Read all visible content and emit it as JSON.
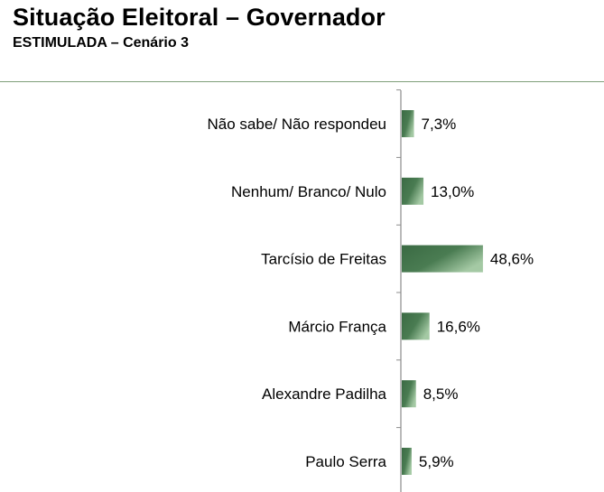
{
  "header": {
    "title": "Situação Eleitoral – Governador",
    "subtitle": "ESTIMULADA – Cenário 3"
  },
  "colors": {
    "bar_dark": "#3a6a43",
    "bar_light": "#a4c9a4",
    "axis": "#8c8c8c",
    "divider": "#7f9f7a"
  },
  "chart_data": {
    "type": "bar",
    "orientation": "horizontal",
    "title": "Situação Eleitoral – Governador",
    "subtitle": "ESTIMULADA – Cenário 3",
    "categories": [
      "Não sabe/ Não respondeu",
      "Nenhum/ Branco/ Nulo",
      "Tarcísio de Freitas",
      "Márcio França",
      "Alexandre Padilha",
      "Paulo Serra"
    ],
    "values": [
      7.3,
      13.0,
      48.6,
      16.6,
      8.5,
      5.9
    ],
    "value_labels": [
      "7,3%",
      "13,0%",
      "48,6%",
      "16,6%",
      "8,5%",
      "5,9%"
    ],
    "unit": "%",
    "xlim": [
      0,
      100
    ],
    "grid": false,
    "legend": "none"
  }
}
